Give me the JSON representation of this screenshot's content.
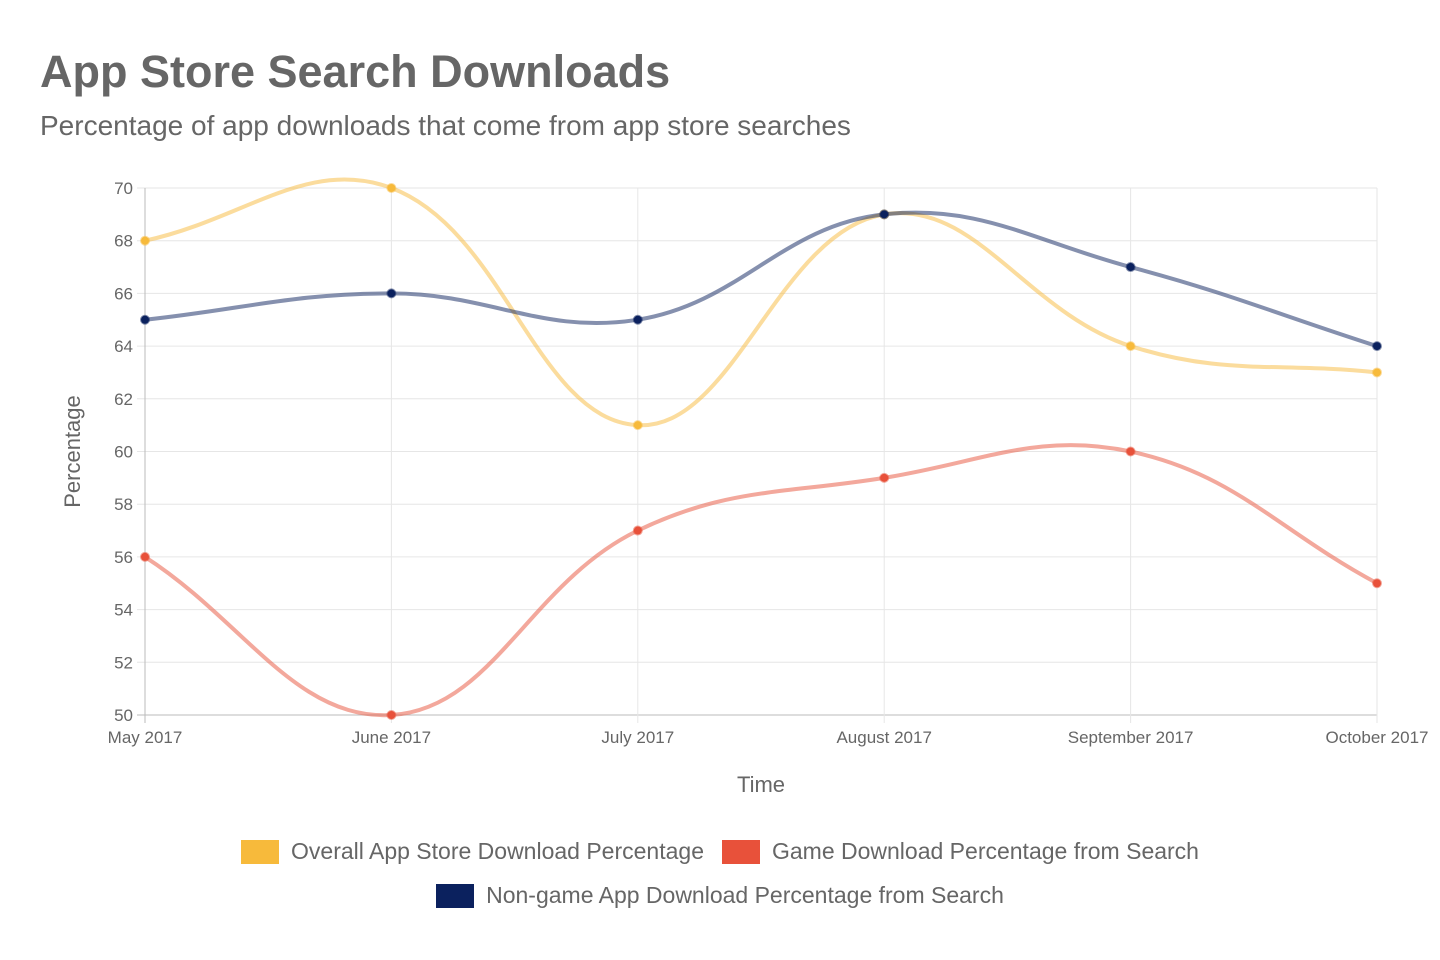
{
  "chart_data": {
    "type": "line",
    "title": "App Store Search Downloads",
    "subtitle": "Percentage of app downloads that come from app store searches",
    "xlabel": "Time",
    "ylabel": "Percentage",
    "categories": [
      "May 2017",
      "June 2017",
      "July 2017",
      "August 2017",
      "September 2017",
      "October 2017"
    ],
    "ylim": [
      50,
      70
    ],
    "yticks": [
      50,
      52,
      54,
      56,
      58,
      60,
      62,
      64,
      66,
      68,
      70
    ],
    "grid": true,
    "legend_position": "bottom",
    "series": [
      {
        "name": "Overall App Store Download Percentage",
        "color": "#F7BA3B",
        "values": [
          68,
          70,
          61,
          69,
          64,
          63
        ]
      },
      {
        "name": "Game Download Percentage from Search",
        "color": "#E8513A",
        "values": [
          56,
          50,
          57,
          59,
          60,
          55
        ]
      },
      {
        "name": "Non-game App Download Percentage from Search",
        "color": "#0B215E",
        "values": [
          65,
          66,
          65,
          69,
          67,
          64
        ]
      }
    ]
  }
}
